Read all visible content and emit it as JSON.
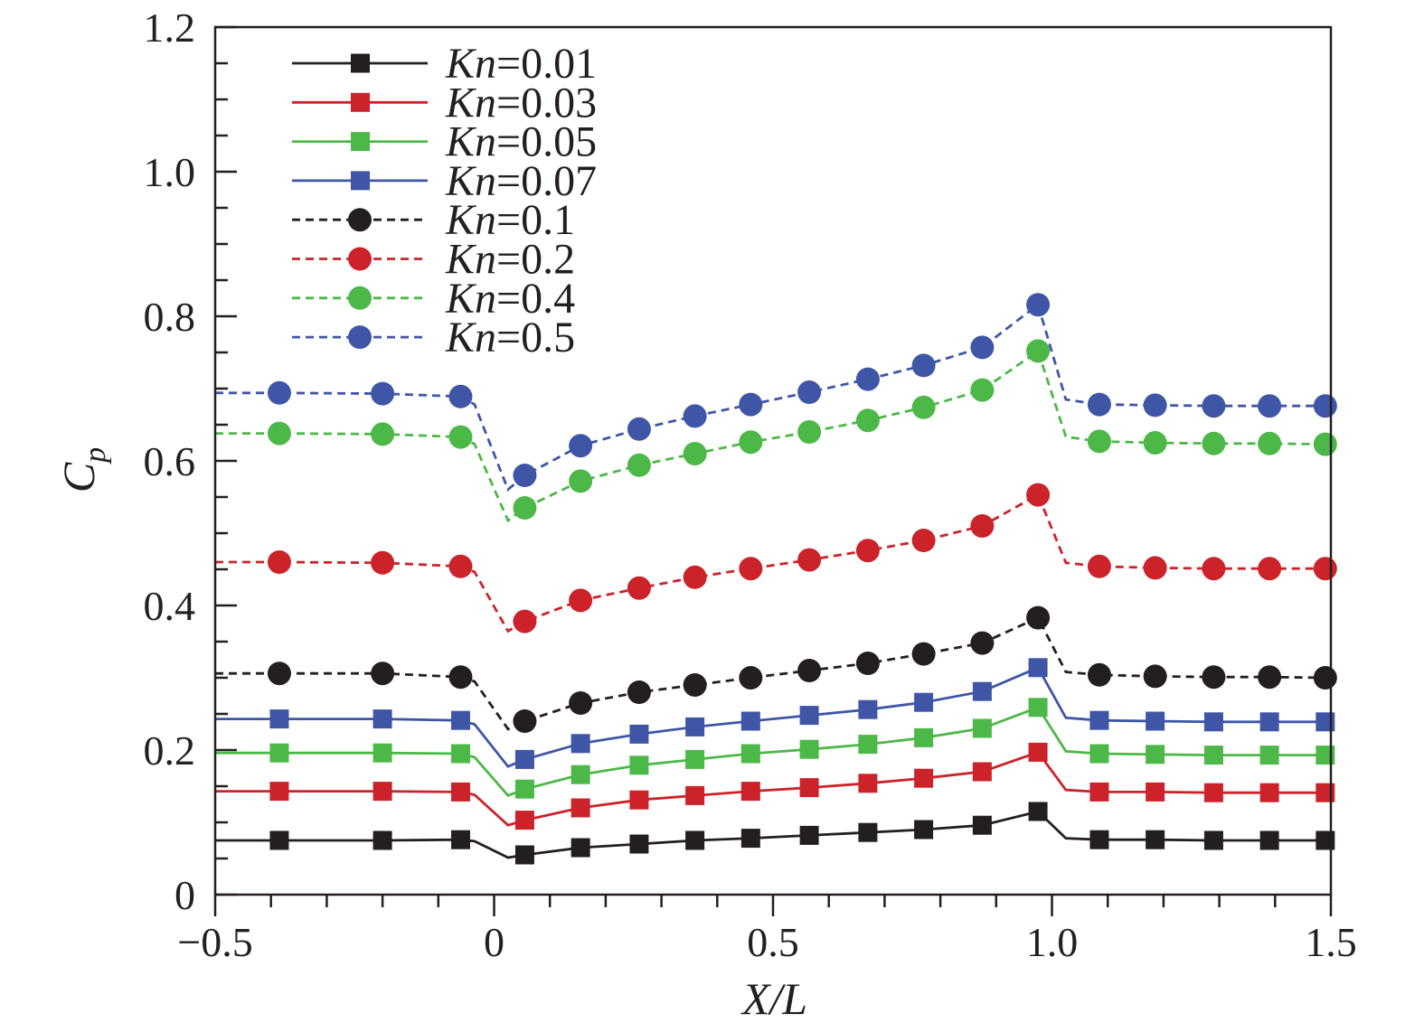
{
  "chart_data": {
    "type": "line",
    "xlabel": "X/L",
    "ylabel": "C",
    "ylabel_sub": "p",
    "xlim": [
      -0.5,
      1.5
    ],
    "ylim": [
      0,
      1.2
    ],
    "xticks": [
      -0.5,
      0,
      0.5,
      1.0,
      1.5
    ],
    "xtick_labels": [
      "−0.5",
      "0",
      "0.5",
      "1.0",
      "1.5"
    ],
    "yticks": [
      0,
      0.2,
      0.4,
      0.6,
      0.8,
      1.0,
      1.2
    ],
    "ytick_labels": [
      "0",
      "0.2",
      "0.4",
      "0.6",
      "0.8",
      "1.0",
      "1.2"
    ],
    "grid": false,
    "legend_position": "top-left",
    "marker_x": [
      -0.385,
      -0.2,
      -0.06,
      0.055,
      0.155,
      0.26,
      0.36,
      0.46,
      0.565,
      0.67,
      0.77,
      0.875,
      0.975,
      1.085,
      1.185,
      1.29,
      1.39,
      1.49
    ],
    "series": [
      {
        "name": "Kn=0.01",
        "name_italic": "Kn",
        "name_rest": "=0.01",
        "color": "#231f20",
        "style": "solid",
        "marker": "square",
        "values": [
          0.075,
          0.075,
          0.076,
          0.055,
          0.065,
          0.07,
          0.075,
          0.078,
          0.082,
          0.086,
          0.09,
          0.096,
          0.115,
          0.076,
          0.076,
          0.075,
          0.075,
          0.075
        ]
      },
      {
        "name": "Kn=0.03",
        "name_italic": "Kn",
        "name_rest": "=0.03",
        "color": "#cc2229",
        "style": "solid",
        "marker": "square",
        "values": [
          0.143,
          0.143,
          0.142,
          0.103,
          0.12,
          0.131,
          0.137,
          0.143,
          0.148,
          0.154,
          0.161,
          0.17,
          0.197,
          0.142,
          0.142,
          0.141,
          0.141,
          0.141
        ]
      },
      {
        "name": "Kn=0.05",
        "name_italic": "Kn",
        "name_rest": "=0.05",
        "color": "#4cb848",
        "style": "solid",
        "marker": "square",
        "values": [
          0.196,
          0.196,
          0.195,
          0.146,
          0.166,
          0.179,
          0.187,
          0.195,
          0.201,
          0.208,
          0.217,
          0.23,
          0.259,
          0.195,
          0.194,
          0.193,
          0.193,
          0.193
        ]
      },
      {
        "name": "Kn=0.07",
        "name_italic": "Kn",
        "name_rest": "=0.07",
        "color": "#3f56a6",
        "style": "solid",
        "marker": "square",
        "values": [
          0.243,
          0.243,
          0.241,
          0.187,
          0.209,
          0.222,
          0.232,
          0.24,
          0.248,
          0.256,
          0.266,
          0.281,
          0.314,
          0.241,
          0.24,
          0.239,
          0.239,
          0.239
        ]
      },
      {
        "name": "Kn=0.1",
        "name_italic": "Kn",
        "name_rest": "=0.1",
        "color": "#231f20",
        "style": "dashed",
        "marker": "circle",
        "values": [
          0.306,
          0.306,
          0.301,
          0.24,
          0.265,
          0.28,
          0.29,
          0.3,
          0.31,
          0.32,
          0.333,
          0.348,
          0.383,
          0.304,
          0.302,
          0.301,
          0.301,
          0.3
        ]
      },
      {
        "name": "Kn=0.2",
        "name_italic": "Kn",
        "name_rest": "=0.2",
        "color": "#cc2229",
        "style": "dashed",
        "marker": "circle",
        "values": [
          0.46,
          0.459,
          0.454,
          0.378,
          0.407,
          0.424,
          0.439,
          0.451,
          0.463,
          0.476,
          0.49,
          0.51,
          0.553,
          0.454,
          0.452,
          0.451,
          0.451,
          0.451
        ]
      },
      {
        "name": "Kn=0.4",
        "name_italic": "Kn",
        "name_rest": "=0.4",
        "color": "#4cb848",
        "style": "dashed",
        "marker": "circle",
        "values": [
          0.638,
          0.637,
          0.633,
          0.535,
          0.572,
          0.594,
          0.61,
          0.626,
          0.64,
          0.656,
          0.674,
          0.698,
          0.752,
          0.627,
          0.625,
          0.624,
          0.624,
          0.623
        ]
      },
      {
        "name": "Kn=0.5",
        "name_italic": "Kn",
        "name_rest": "=0.5",
        "color": "#3f56a6",
        "style": "dashed",
        "marker": "circle",
        "values": [
          0.694,
          0.693,
          0.689,
          0.58,
          0.621,
          0.644,
          0.662,
          0.678,
          0.695,
          0.713,
          0.732,
          0.757,
          0.816,
          0.678,
          0.677,
          0.676,
          0.676,
          0.676
        ]
      }
    ]
  }
}
